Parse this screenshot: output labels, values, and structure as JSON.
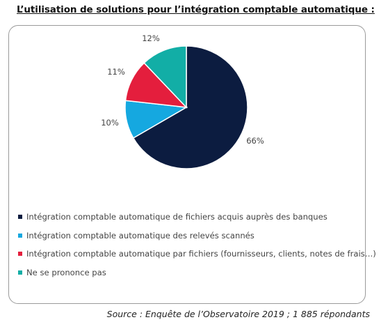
{
  "title": "L’utilisation de solutions pour l’intégration comptable automatique :",
  "source": "Source : Enquête de l’Observatoire 2019 ; 1 885 répondants",
  "chart_data": {
    "type": "pie",
    "categories": [
      "Intégration comptable automatique de fichiers acquis auprès des banques",
      "Intégration comptable automatique des relevés scannés",
      "Intégration comptable automatique par fichiers (fournisseurs, clients, notes de frais…)",
      "Ne se prononce pas"
    ],
    "values": [
      66,
      10,
      11,
      12
    ],
    "labels": [
      "66%",
      "10%",
      "11%",
      "12%"
    ],
    "colors": [
      "#0c1c40",
      "#15a8e0",
      "#e41e3d",
      "#12aea6"
    ],
    "legend_position": "bottom-left"
  }
}
